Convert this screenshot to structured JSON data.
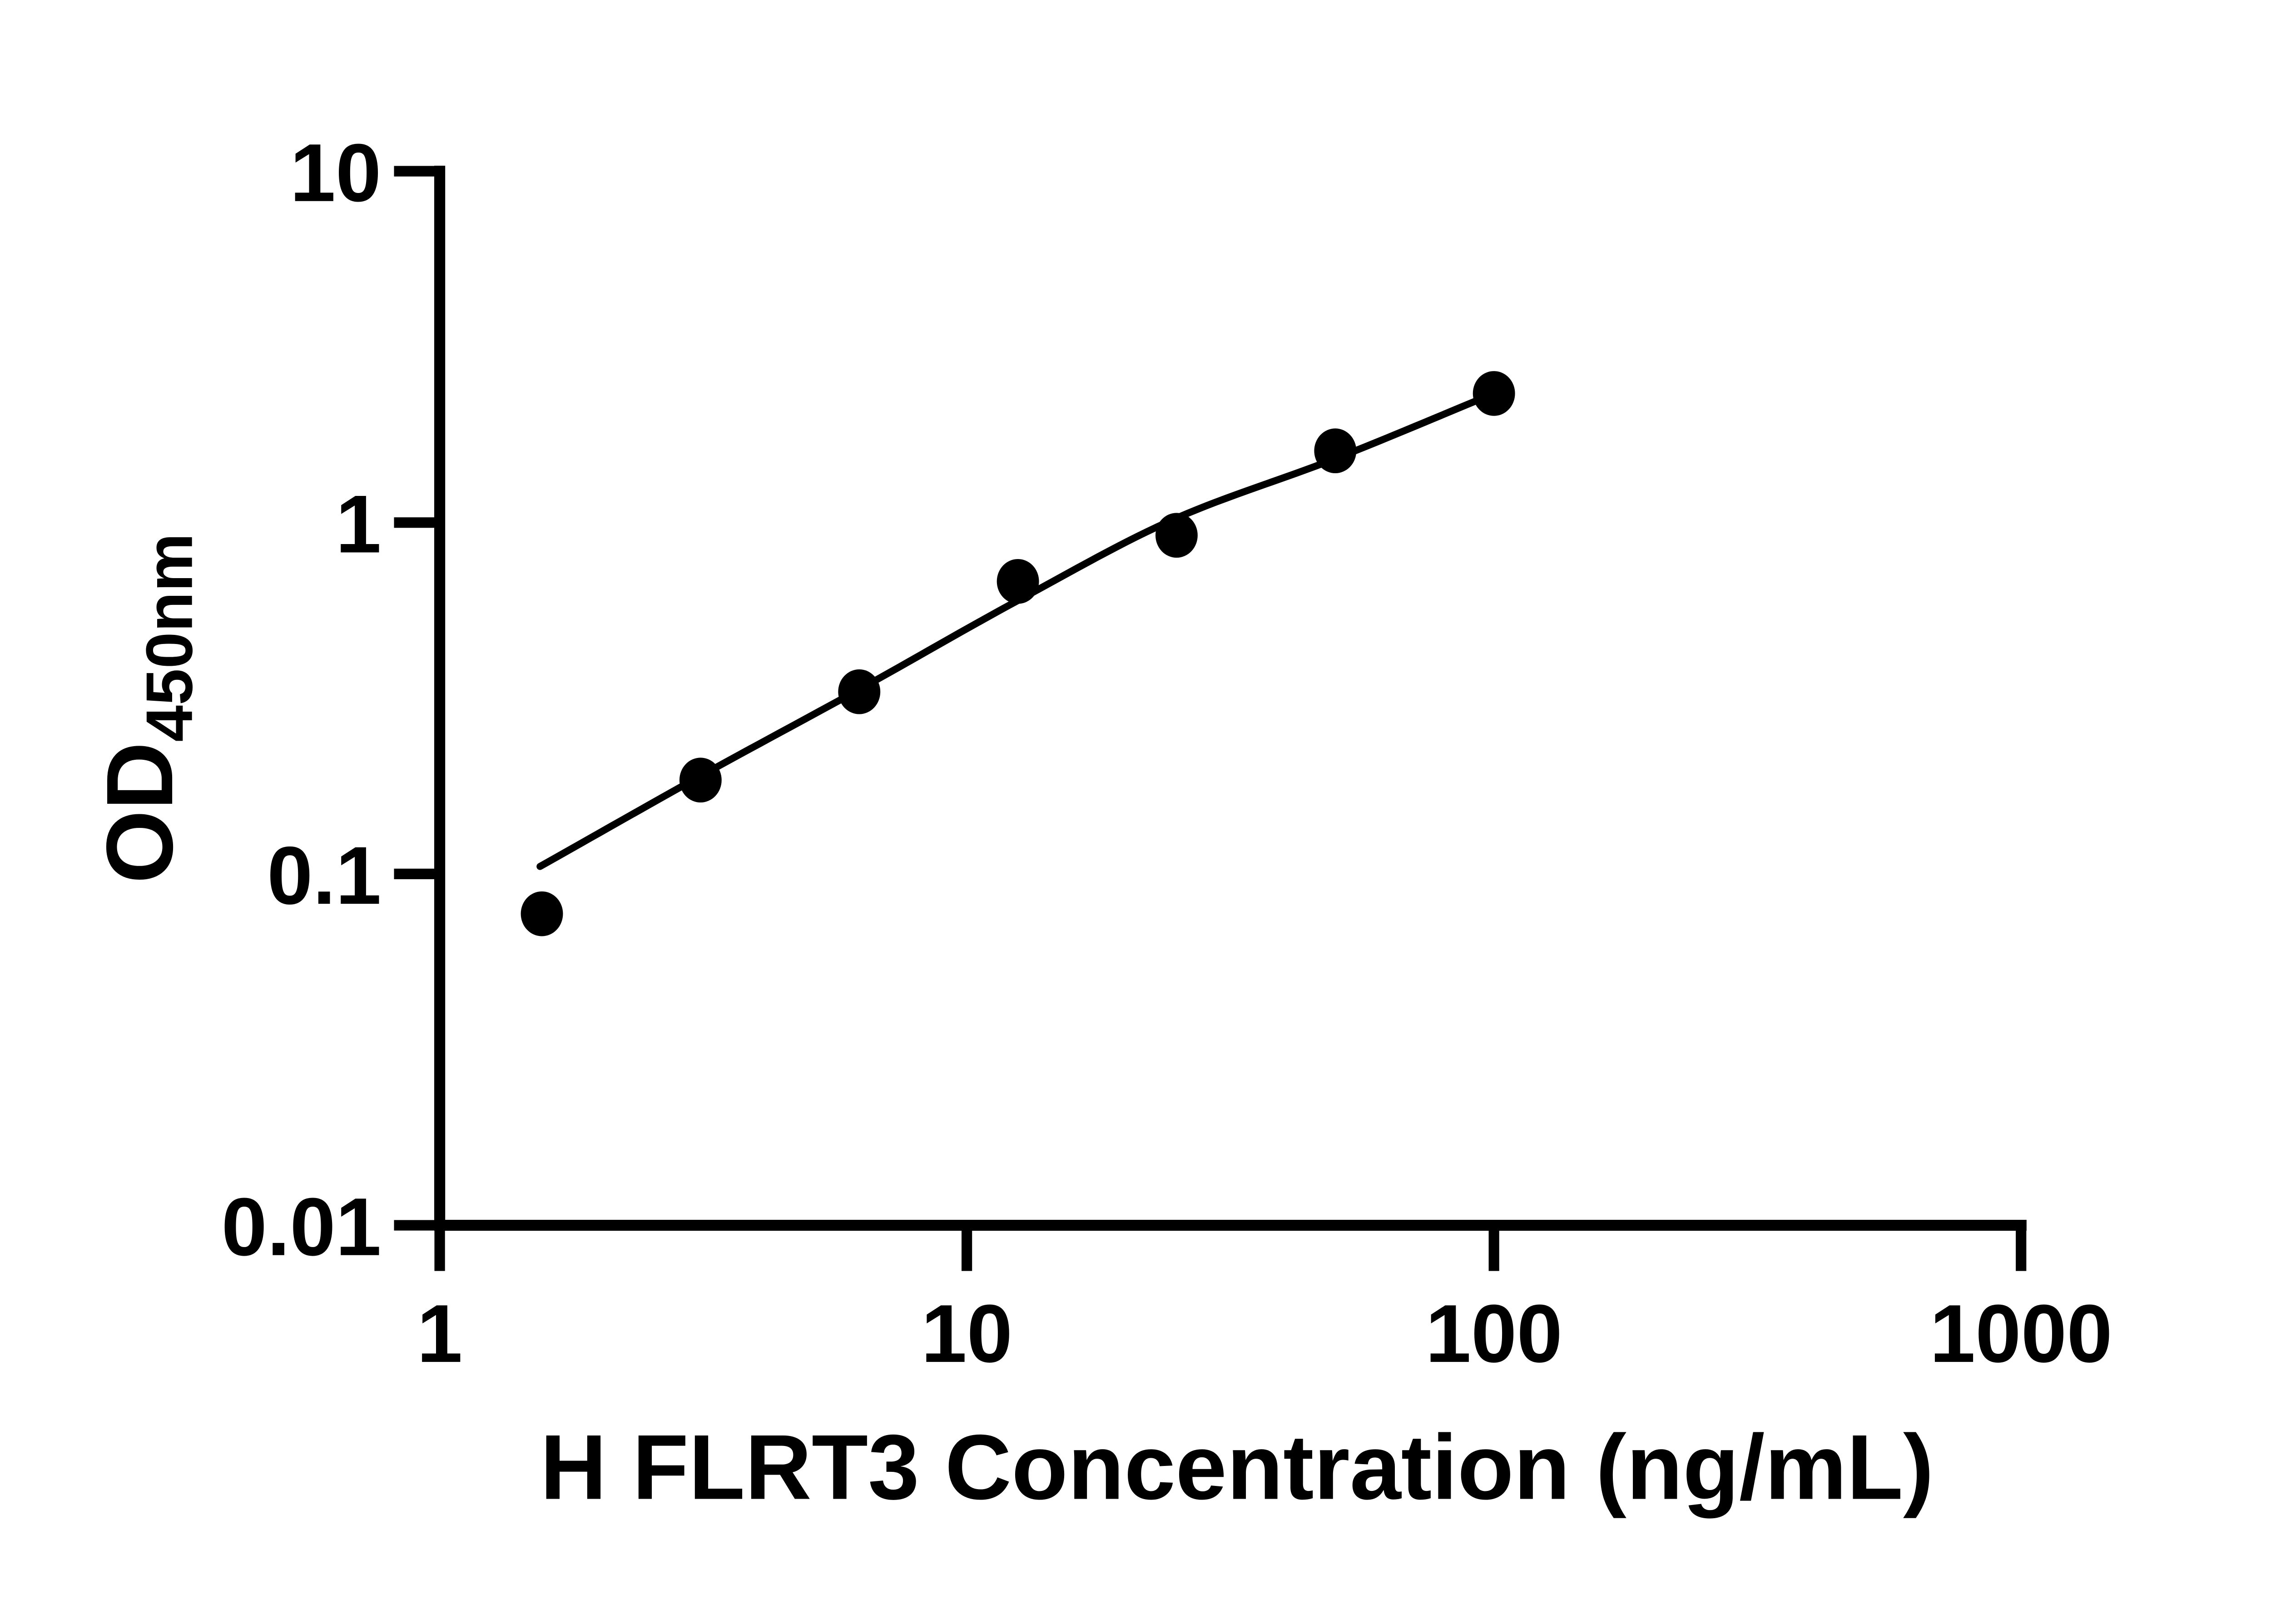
{
  "chart_data": {
    "type": "scatter",
    "title": "",
    "xlabel": "H FLRT3 Concentration (ng/mL)",
    "ylabel": "OD450nm",
    "ylabel_main": "OD",
    "ylabel_sub": "450nm",
    "x_scale": "log10",
    "y_scale": "log10",
    "xlim": [
      1,
      1000
    ],
    "ylim": [
      0.01,
      10
    ],
    "x_tick_labels": [
      "1",
      "10",
      "100",
      "1000"
    ],
    "x_tick_values": [
      1,
      10,
      100,
      1000
    ],
    "y_tick_labels": [
      "10",
      "1",
      "0.1",
      "0.01"
    ],
    "y_tick_values": [
      10,
      1,
      0.1,
      0.01
    ],
    "grid": false,
    "legend": false,
    "series": [
      {
        "name": "H FLRT3 standard curve points",
        "marker": "filled-black-circle",
        "x": [
          1.5625,
          3.125,
          6.25,
          12.5,
          25,
          50,
          100
        ],
        "y": [
          0.077,
          0.185,
          0.33,
          0.68,
          0.92,
          1.6,
          2.33
        ]
      }
    ],
    "fit_curve": {
      "style": "solid-black-line",
      "anchors_x": [
        1.55,
        3.125,
        6.25,
        12.5,
        25,
        50,
        100
      ],
      "anchors_y": [
        0.105,
        0.19,
        0.335,
        0.6,
        1.03,
        1.52,
        2.33
      ]
    },
    "colors": {
      "ink": "#000000",
      "background": "#ffffff"
    }
  }
}
